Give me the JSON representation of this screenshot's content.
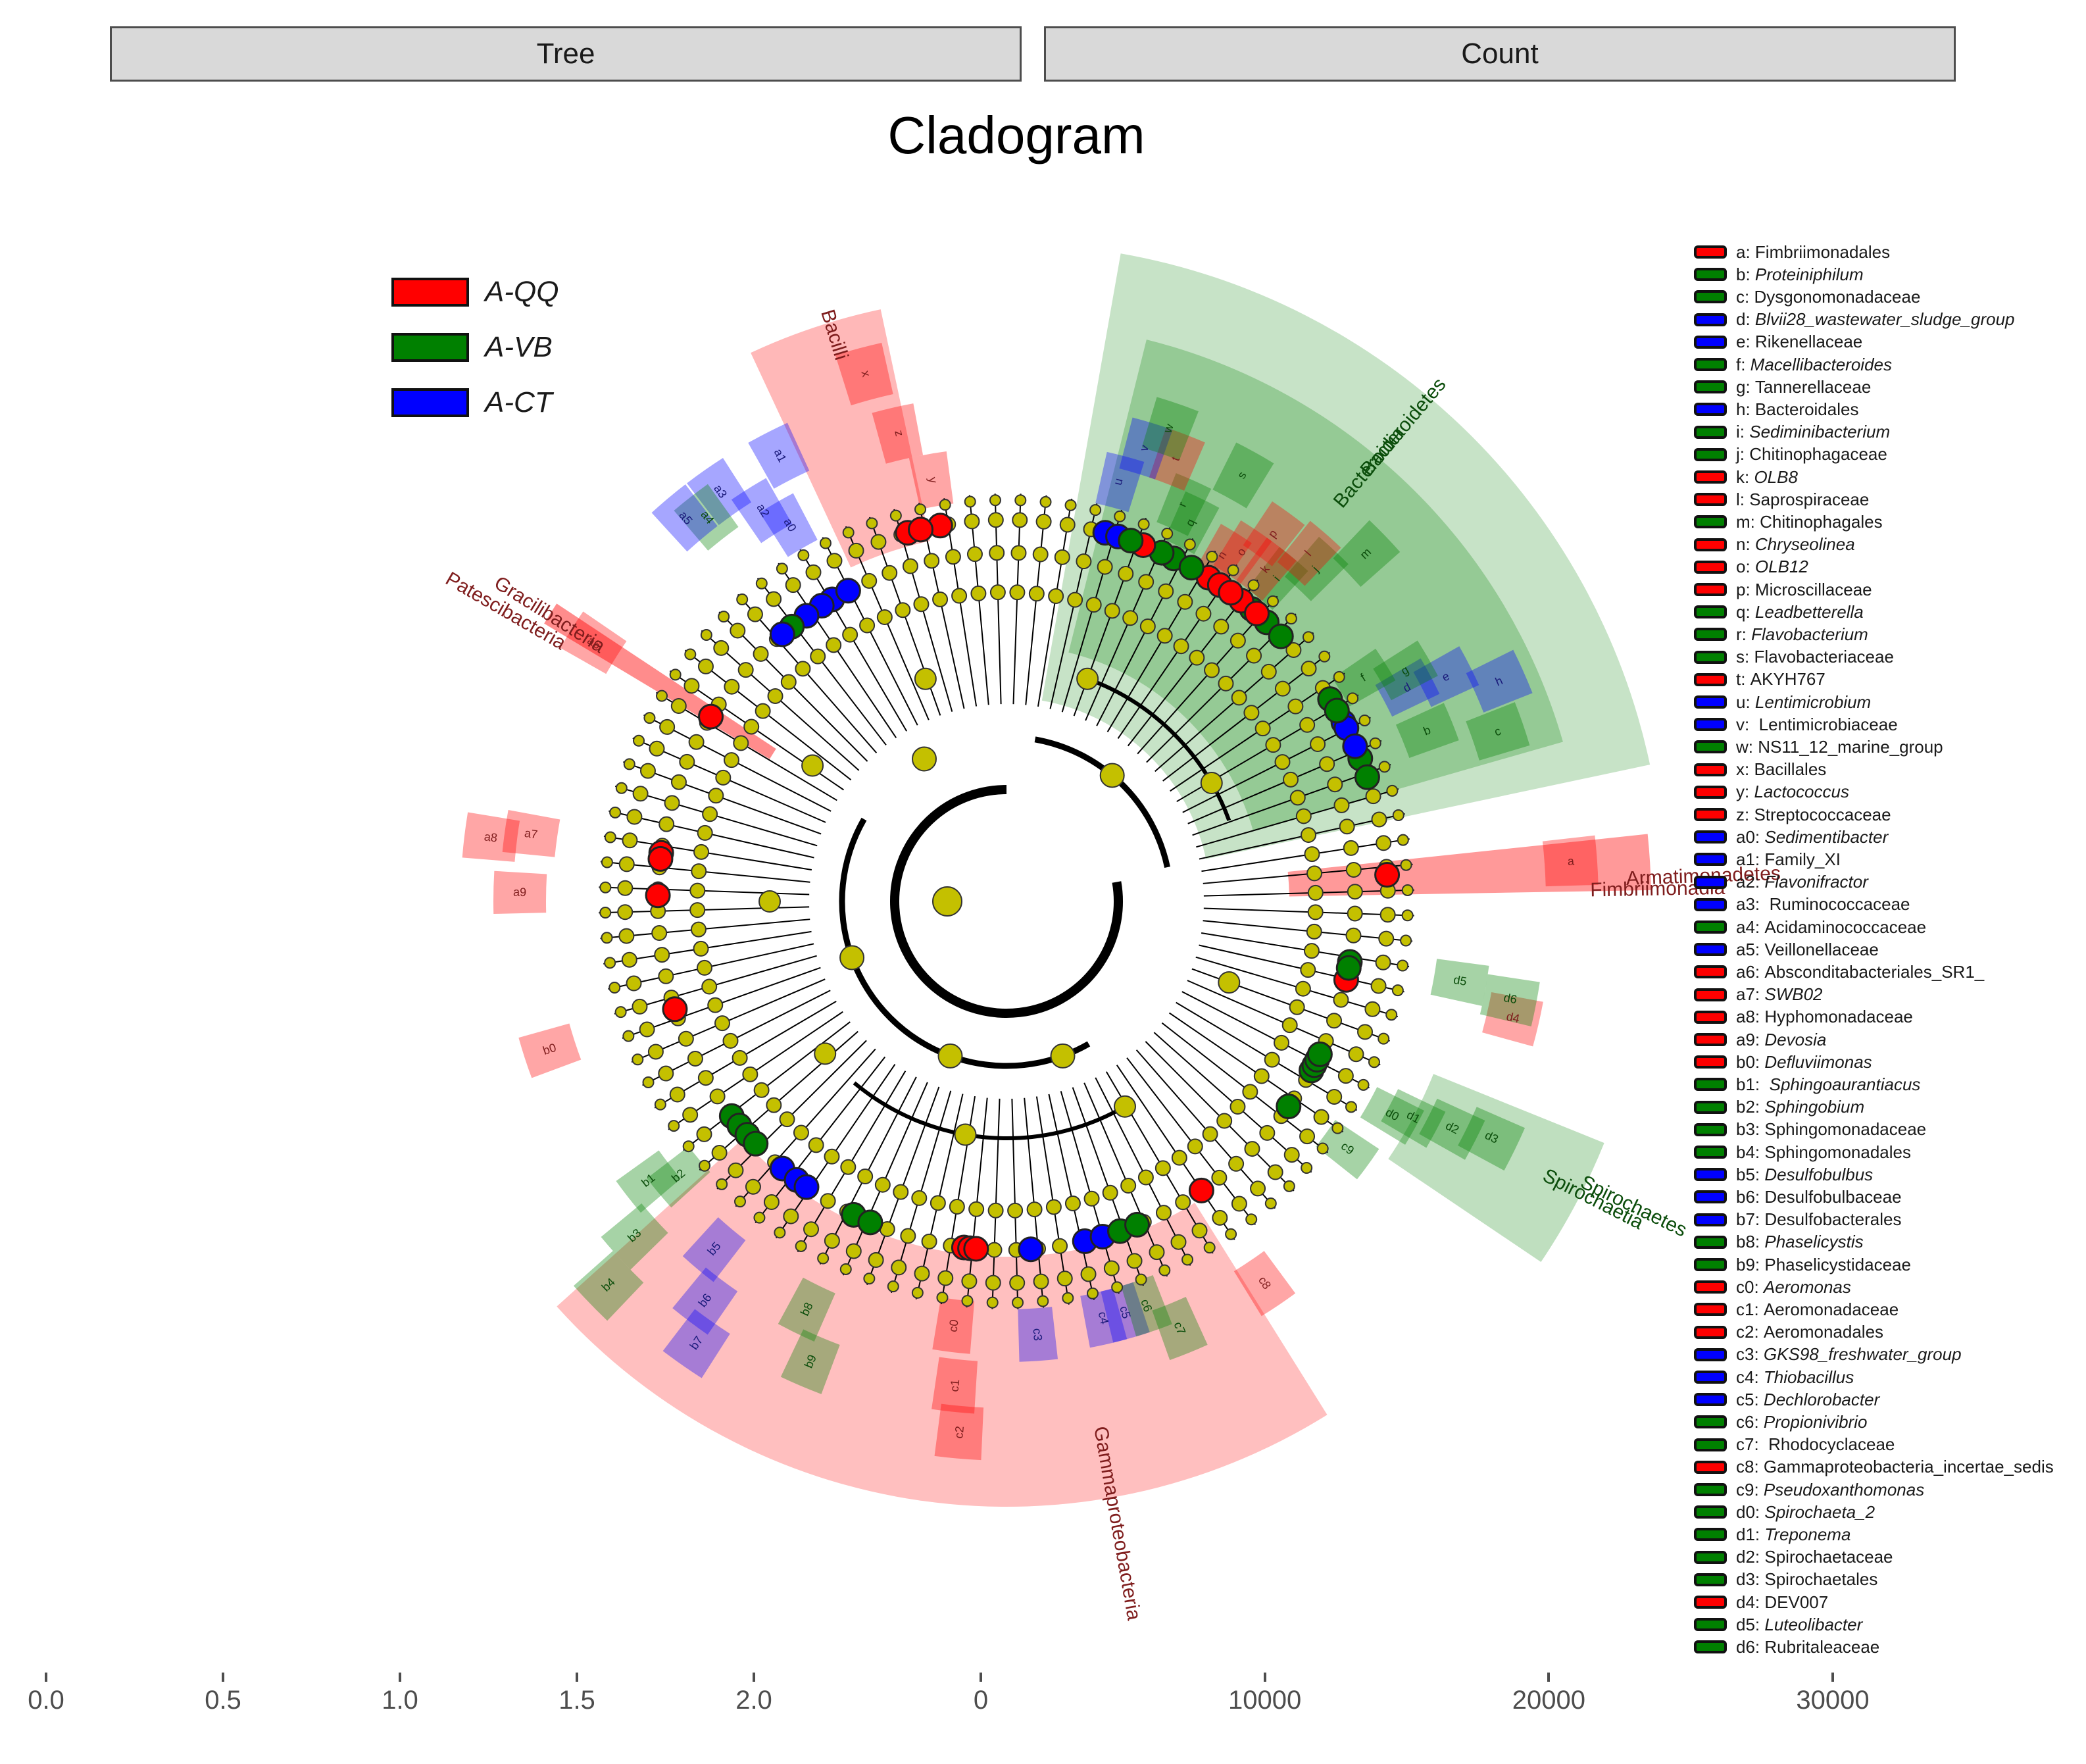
{
  "strips": {
    "left": "Tree",
    "right": "Count"
  },
  "chart_data": {
    "type": "cladogram",
    "title": "Cladogram",
    "groups": [
      {
        "name": "A-QQ",
        "color": "#ff0000"
      },
      {
        "name": "A-VB",
        "color": "#008000"
      },
      {
        "name": "A-CT",
        "color": "#0000ff"
      }
    ],
    "clade_labels": [
      {
        "text": "Bacilli",
        "group": "A-QQ"
      },
      {
        "text": "Patescibacteria",
        "group": "A-QQ"
      },
      {
        "text": "Gracilibacteria",
        "group": "A-QQ"
      },
      {
        "text": "Bacteroidetes",
        "group": "A-VB"
      },
      {
        "text": "Bacteroidia",
        "group": "A-VB"
      },
      {
        "text": "Armatimonadetes",
        "group": "A-QQ"
      },
      {
        "text": "Fimbriimonadia",
        "group": "A-QQ"
      },
      {
        "text": "Spirochaetes",
        "group": "A-VB"
      },
      {
        "text": "Spirochaetia",
        "group": "A-VB"
      },
      {
        "text": "Gammaproteobacteria",
        "group": "A-QQ"
      }
    ],
    "biomarkers": [
      {
        "code": "a",
        "name": "Fimbriimonadales",
        "group": "A-QQ",
        "italic": false
      },
      {
        "code": "b",
        "name": "Proteiniphilum",
        "group": "A-VB",
        "italic": true
      },
      {
        "code": "c",
        "name": "Dysgonomonadaceae",
        "group": "A-VB",
        "italic": false
      },
      {
        "code": "d",
        "name": "Blvii28_wastewater_sludge_group",
        "group": "A-CT",
        "italic": true
      },
      {
        "code": "e",
        "name": "Rikenellaceae",
        "group": "A-CT",
        "italic": false
      },
      {
        "code": "f",
        "name": "Macellibacteroides",
        "group": "A-VB",
        "italic": true
      },
      {
        "code": "g",
        "name": "Tannerellaceae",
        "group": "A-VB",
        "italic": false
      },
      {
        "code": "h",
        "name": "Bacteroidales",
        "group": "A-CT",
        "italic": false
      },
      {
        "code": "i",
        "name": "Sediminibacterium",
        "group": "A-VB",
        "italic": true
      },
      {
        "code": "j",
        "name": "Chitinophagaceae",
        "group": "A-VB",
        "italic": false
      },
      {
        "code": "k",
        "name": "OLB8",
        "group": "A-QQ",
        "italic": true
      },
      {
        "code": "l",
        "name": "Saprospiraceae",
        "group": "A-QQ",
        "italic": false
      },
      {
        "code": "m",
        "name": "Chitinophagales",
        "group": "A-VB",
        "italic": false
      },
      {
        "code": "n",
        "name": "Chryseolinea",
        "group": "A-QQ",
        "italic": true
      },
      {
        "code": "o",
        "name": "OLB12",
        "group": "A-QQ",
        "italic": true
      },
      {
        "code": "p",
        "name": "Microscillaceae",
        "group": "A-QQ",
        "italic": false
      },
      {
        "code": "q",
        "name": "Leadbetterella",
        "group": "A-VB",
        "italic": true
      },
      {
        "code": "r",
        "name": "Flavobacterium",
        "group": "A-VB",
        "italic": true
      },
      {
        "code": "s",
        "name": "Flavobacteriaceae",
        "group": "A-VB",
        "italic": false
      },
      {
        "code": "t",
        "name": "AKYH767",
        "group": "A-QQ",
        "italic": false
      },
      {
        "code": "u",
        "name": "Lentimicrobium",
        "group": "A-CT",
        "italic": true
      },
      {
        "code": "v",
        "name": " Lentimicrobiaceae",
        "group": "A-CT",
        "italic": false
      },
      {
        "code": "w",
        "name": "NS11_12_marine_group",
        "group": "A-VB",
        "italic": false
      },
      {
        "code": "x",
        "name": "Bacillales",
        "group": "A-QQ",
        "italic": false
      },
      {
        "code": "y",
        "name": "Lactococcus",
        "group": "A-QQ",
        "italic": true
      },
      {
        "code": "z",
        "name": "Streptococcaceae",
        "group": "A-QQ",
        "italic": false
      },
      {
        "code": "a0",
        "name": "Sedimentibacter",
        "group": "A-CT",
        "italic": true
      },
      {
        "code": "a1",
        "name": "Family_XI",
        "group": "A-CT",
        "italic": false
      },
      {
        "code": "a2",
        "name": "Flavonifractor",
        "group": "A-CT",
        "italic": true
      },
      {
        "code": "a3",
        "name": " Ruminococcaceae",
        "group": "A-CT",
        "italic": false
      },
      {
        "code": "a4",
        "name": "Acidaminococcaceae",
        "group": "A-VB",
        "italic": false
      },
      {
        "code": "a5",
        "name": "Veillonellaceae",
        "group": "A-CT",
        "italic": false
      },
      {
        "code": "a6",
        "name": "Absconditabacteriales_SR1_",
        "group": "A-QQ",
        "italic": false
      },
      {
        "code": "a7",
        "name": "SWB02",
        "group": "A-QQ",
        "italic": true
      },
      {
        "code": "a8",
        "name": "Hyphomonadaceae",
        "group": "A-QQ",
        "italic": false
      },
      {
        "code": "a9",
        "name": "Devosia",
        "group": "A-QQ",
        "italic": true
      },
      {
        "code": "b0",
        "name": "Defluviimonas",
        "group": "A-QQ",
        "italic": true
      },
      {
        "code": "b1",
        "name": " Sphingoaurantiacus",
        "group": "A-VB",
        "italic": true
      },
      {
        "code": "b2",
        "name": "Sphingobium",
        "group": "A-VB",
        "italic": true
      },
      {
        "code": "b3",
        "name": "Sphingomonadaceae",
        "group": "A-VB",
        "italic": false
      },
      {
        "code": "b4",
        "name": "Sphingomonadales",
        "group": "A-VB",
        "italic": false
      },
      {
        "code": "b5",
        "name": "Desulfobulbus",
        "group": "A-CT",
        "italic": true
      },
      {
        "code": "b6",
        "name": "Desulfobulbaceae",
        "group": "A-CT",
        "italic": false
      },
      {
        "code": "b7",
        "name": "Desulfobacterales",
        "group": "A-CT",
        "italic": false
      },
      {
        "code": "b8",
        "name": "Phaselicystis",
        "group": "A-VB",
        "italic": true
      },
      {
        "code": "b9",
        "name": "Phaselicystidaceae",
        "group": "A-VB",
        "italic": false
      },
      {
        "code": "c0",
        "name": "Aeromonas",
        "group": "A-QQ",
        "italic": true
      },
      {
        "code": "c1",
        "name": "Aeromonadaceae",
        "group": "A-QQ",
        "italic": false
      },
      {
        "code": "c2",
        "name": "Aeromonadales",
        "group": "A-QQ",
        "italic": false
      },
      {
        "code": "c3",
        "name": "GKS98_freshwater_group",
        "group": "A-CT",
        "italic": true
      },
      {
        "code": "c4",
        "name": "Thiobacillus",
        "group": "A-CT",
        "italic": true
      },
      {
        "code": "c5",
        "name": "Dechlorobacter",
        "group": "A-CT",
        "italic": true
      },
      {
        "code": "c6",
        "name": "Propionivibrio",
        "group": "A-VB",
        "italic": true
      },
      {
        "code": "c7",
        "name": " Rhodocyclaceae",
        "group": "A-VB",
        "italic": false
      },
      {
        "code": "c8",
        "name": "Gammaproteobacteria_incertae_sedis",
        "group": "A-QQ",
        "italic": false
      },
      {
        "code": "c9",
        "name": "Pseudoxanthomonas",
        "group": "A-VB",
        "italic": true
      },
      {
        "code": "d0",
        "name": "Spirochaeta_2",
        "group": "A-VB",
        "italic": true
      },
      {
        "code": "d1",
        "name": "Treponema",
        "group": "A-VB",
        "italic": true
      },
      {
        "code": "d2",
        "name": "Spirochaetaceae",
        "group": "A-VB",
        "italic": false
      },
      {
        "code": "d3",
        "name": "Spirochaetales",
        "group": "A-VB",
        "italic": false
      },
      {
        "code": "d4",
        "name": "DEV007",
        "group": "A-QQ",
        "italic": false
      },
      {
        "code": "d5",
        "name": "Luteolibacter",
        "group": "A-VB",
        "italic": true
      },
      {
        "code": "d6",
        "name": "Rubritaleaceae",
        "group": "A-VB",
        "italic": false
      }
    ],
    "x_axis_tree": {
      "ticks": [
        "0.0",
        "0.5",
        "1.0",
        "1.5",
        "2.0"
      ],
      "range": [
        0.0,
        2.0
      ]
    },
    "x_axis_count": {
      "ticks": [
        "0",
        "10000",
        "20000",
        "30000"
      ],
      "range": [
        0,
        30000
      ]
    }
  }
}
